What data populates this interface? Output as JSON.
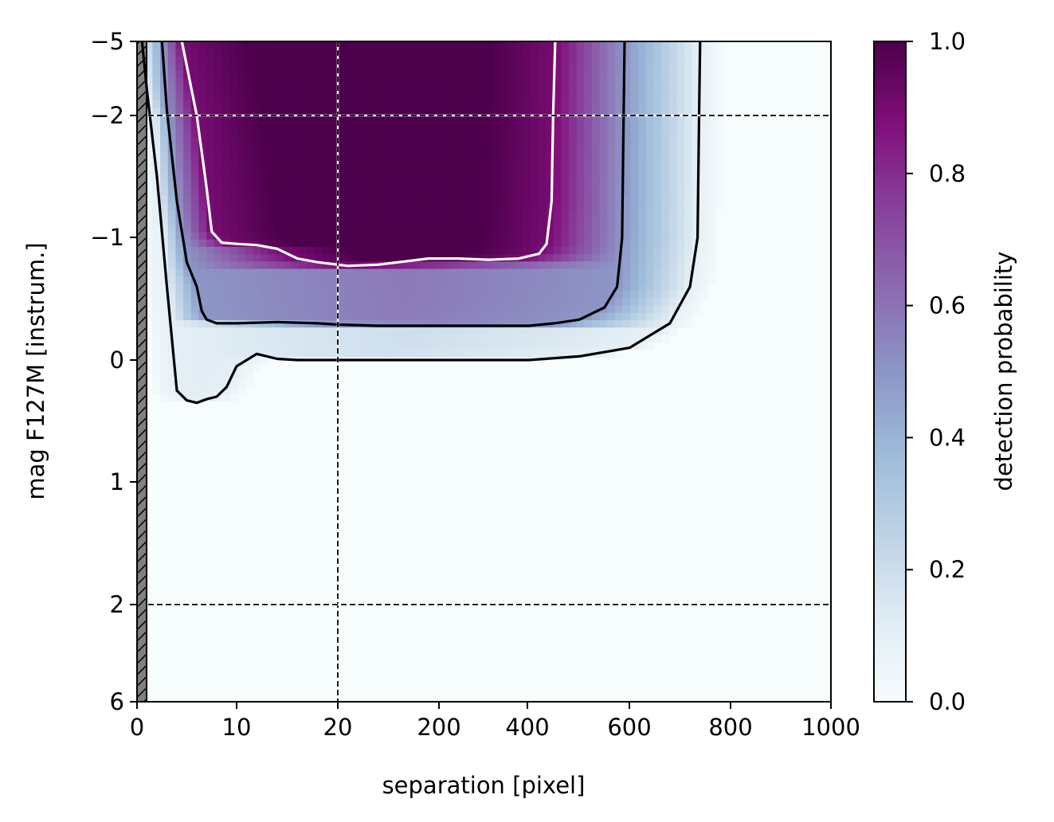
{
  "chart_data": {
    "type": "heatmap",
    "title": "",
    "xlabel": "separation [pixel]",
    "ylabel": "mag F127M [instrum.]",
    "colorbar_label": "detection probability",
    "colormap": "BuPu",
    "colormap_stops": [
      "#f7fcfd",
      "#e0ecf4",
      "#bfd3e6",
      "#9ebcda",
      "#8c96c6",
      "#8c6bb1",
      "#88419d",
      "#810f7c",
      "#4d004b"
    ],
    "x_scale": "piecewise (0–20 expanded, 20–1000 compressed)",
    "y_scale": "piecewise (−5 to −2 compressed, −2 to 2 expanded, 2 to 6 compressed)",
    "x_ticks": [
      "0",
      "10",
      "20",
      "200",
      "400",
      "600",
      "800",
      "1000"
    ],
    "y_ticks": [
      "−5",
      "−2",
      "−1",
      "0",
      "1",
      "2",
      "6"
    ],
    "colorbar_ticks": [
      "0.0",
      "0.2",
      "0.4",
      "0.6",
      "0.8",
      "1.0"
    ],
    "xlim": [
      0,
      1000
    ],
    "ylim": [
      6,
      -5
    ],
    "clim": [
      0,
      1
    ],
    "masked_region": {
      "x": [
        0,
        1
      ],
      "style": "gray hatched"
    },
    "reference_lines": {
      "vertical": [
        20
      ],
      "horizontal": [
        -2,
        2
      ],
      "style": "dashed"
    },
    "contours": [
      {
        "level": 0.1,
        "color": "#000000",
        "points": [
          [
            0.5,
            -5
          ],
          [
            1,
            -3
          ],
          [
            2,
            -1.5
          ],
          [
            3,
            -0.6
          ],
          [
            4,
            0.25
          ],
          [
            5,
            0.33
          ],
          [
            6,
            0.35
          ],
          [
            7,
            0.32
          ],
          [
            8,
            0.3
          ],
          [
            9,
            0.22
          ],
          [
            10,
            0.05
          ],
          [
            11,
            0.0
          ],
          [
            12,
            -0.05
          ],
          [
            14,
            -0.01
          ],
          [
            16,
            0.0
          ],
          [
            18,
            0.0
          ],
          [
            20,
            0.0
          ],
          [
            100,
            0.0
          ],
          [
            200,
            0.0
          ],
          [
            300,
            0.0
          ],
          [
            400,
            0.0
          ],
          [
            500,
            -0.03
          ],
          [
            600,
            -0.1
          ],
          [
            680,
            -0.3
          ],
          [
            720,
            -0.6
          ],
          [
            735,
            -1.0
          ],
          [
            738,
            -2.0
          ],
          [
            740,
            -5
          ]
        ]
      },
      {
        "level": 0.5,
        "color": "#000000",
        "points": [
          [
            2.5,
            -5
          ],
          [
            3,
            -2.2
          ],
          [
            4,
            -1.3
          ],
          [
            5,
            -0.8
          ],
          [
            6,
            -0.6
          ],
          [
            6.5,
            -0.4
          ],
          [
            7,
            -0.33
          ],
          [
            8,
            -0.3
          ],
          [
            10,
            -0.3
          ],
          [
            14,
            -0.31
          ],
          [
            18,
            -0.3
          ],
          [
            20,
            -0.29
          ],
          [
            100,
            -0.28
          ],
          [
            200,
            -0.28
          ],
          [
            300,
            -0.28
          ],
          [
            400,
            -0.28
          ],
          [
            450,
            -0.3
          ],
          [
            500,
            -0.33
          ],
          [
            550,
            -0.43
          ],
          [
            575,
            -0.6
          ],
          [
            585,
            -1.0
          ],
          [
            588,
            -2.0
          ],
          [
            590,
            -5
          ]
        ]
      },
      {
        "level": 0.9,
        "color": "#ffffff",
        "points": [
          [
            4.5,
            -5
          ],
          [
            6,
            -2.0
          ],
          [
            7,
            -1.4
          ],
          [
            7.5,
            -1.05
          ],
          [
            8.5,
            -0.96
          ],
          [
            10,
            -0.95
          ],
          [
            12,
            -0.94
          ],
          [
            14,
            -0.91
          ],
          [
            16,
            -0.83
          ],
          [
            18,
            -0.8
          ],
          [
            20,
            -0.78
          ],
          [
            40,
            -0.77
          ],
          [
            100,
            -0.78
          ],
          [
            200,
            -0.83
          ],
          [
            260,
            -0.83
          ],
          [
            320,
            -0.82
          ],
          [
            380,
            -0.83
          ],
          [
            420,
            -0.87
          ],
          [
            435,
            -0.95
          ],
          [
            445,
            -1.3
          ],
          [
            448,
            -2.0
          ],
          [
            452,
            -5
          ]
        ]
      }
    ]
  }
}
